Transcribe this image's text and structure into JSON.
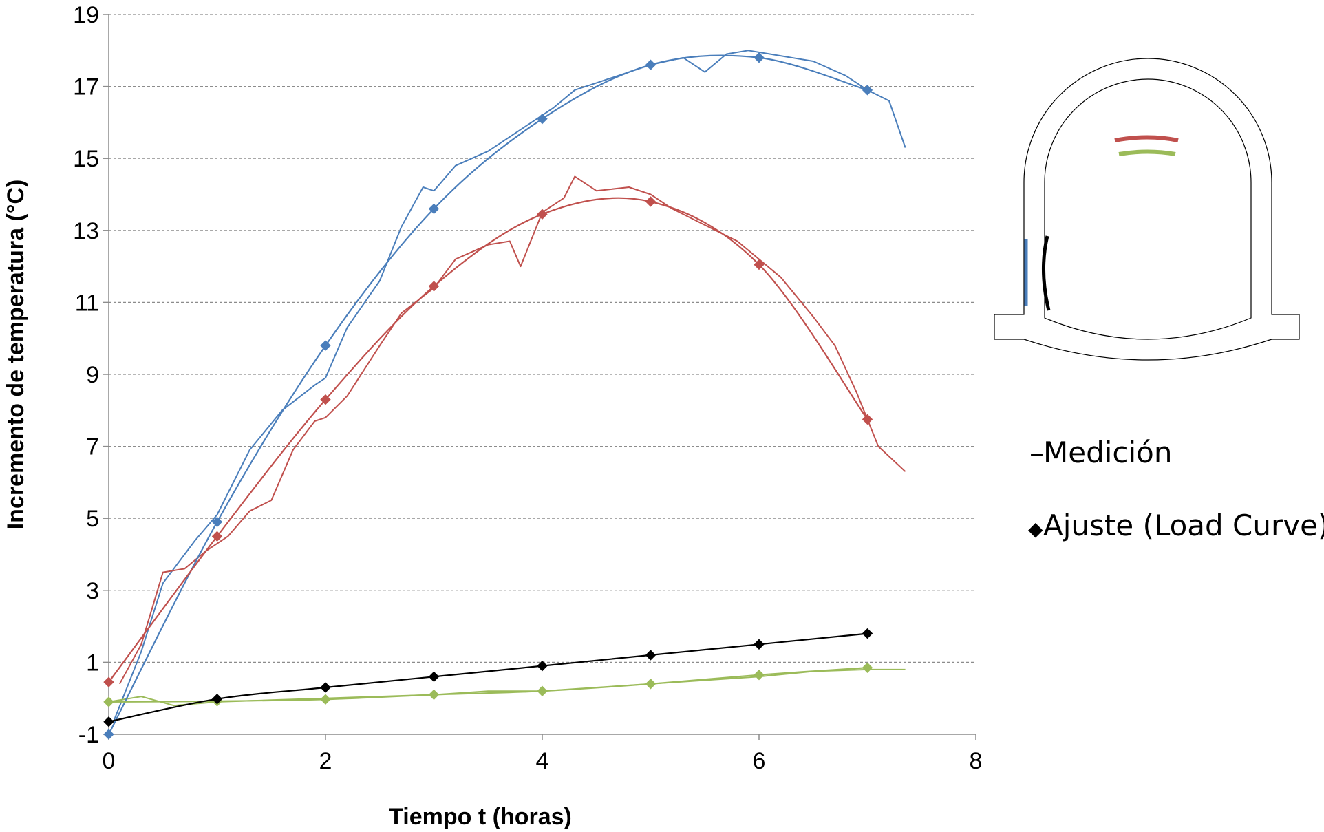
{
  "chart_data": {
    "type": "line",
    "xlabel": "Tiempo t (horas)",
    "ylabel": "Incremento de temperatura (°C)",
    "xlim": [
      0,
      8
    ],
    "ylim": [
      -1,
      19
    ],
    "xticks": [
      "0",
      "2",
      "4",
      "6",
      "8"
    ],
    "yticks": [
      "-1",
      "1",
      "3",
      "5",
      "7",
      "9",
      "11",
      "13",
      "15",
      "17",
      "19"
    ],
    "grid": "horizontal-dashed",
    "legend": [
      {
        "marker": "–",
        "label": "Medición"
      },
      {
        "marker": "◆",
        "label": "Ajuste (Load Curve)"
      }
    ],
    "colors": {
      "blue": "#4a7ebb",
      "red": "#c0504d",
      "green": "#9bbb59",
      "black": "#000000"
    },
    "measurement_series": [
      {
        "color": "blue",
        "x": [
          0.05,
          0.3,
          0.5,
          0.8,
          1.0,
          1.3,
          1.6,
          1.9,
          2.0,
          2.2,
          2.5,
          2.7,
          2.9,
          3.0,
          3.2,
          3.5,
          3.7,
          3.9,
          4.1,
          4.3,
          4.5,
          4.7,
          5.0,
          5.3,
          5.5,
          5.7,
          5.9,
          6.1,
          6.3,
          6.5,
          6.8,
          7.0,
          7.2,
          7.35
        ],
        "y": [
          -0.6,
          1.3,
          3.2,
          4.4,
          5.1,
          6.9,
          8.0,
          8.7,
          8.9,
          10.3,
          11.6,
          13.1,
          14.2,
          14.1,
          14.8,
          15.2,
          15.6,
          16.0,
          16.4,
          16.9,
          17.1,
          17.3,
          17.6,
          17.8,
          17.4,
          17.9,
          18.0,
          17.9,
          17.8,
          17.7,
          17.3,
          16.9,
          16.6,
          15.3
        ]
      },
      {
        "color": "red",
        "x": [
          0.1,
          0.3,
          0.5,
          0.7,
          0.9,
          1.1,
          1.3,
          1.5,
          1.7,
          1.9,
          2.0,
          2.2,
          2.5,
          2.7,
          3.0,
          3.2,
          3.5,
          3.7,
          3.8,
          4.0,
          4.2,
          4.3,
          4.5,
          4.8,
          5.0,
          5.2,
          5.4,
          5.6,
          5.8,
          6.0,
          6.2,
          6.5,
          6.7,
          6.9,
          7.1,
          7.35
        ],
        "y": [
          0.4,
          1.5,
          3.5,
          3.6,
          4.1,
          4.5,
          5.2,
          5.5,
          6.9,
          7.7,
          7.8,
          8.4,
          9.8,
          10.7,
          11.4,
          12.2,
          12.6,
          12.7,
          12.0,
          13.5,
          13.9,
          14.5,
          14.1,
          14.2,
          14.0,
          13.6,
          13.3,
          13.0,
          12.7,
          12.2,
          11.7,
          10.6,
          9.8,
          8.5,
          7.0,
          6.3
        ]
      },
      {
        "color": "green",
        "x": [
          0.0,
          0.3,
          0.6,
          1.0,
          1.5,
          2.0,
          2.5,
          3.0,
          3.5,
          4.0,
          4.5,
          5.0,
          5.5,
          6.0,
          6.5,
          7.0,
          7.35
        ],
        "y": [
          -0.1,
          0.05,
          -0.2,
          -0.1,
          -0.05,
          0.0,
          0.05,
          0.1,
          0.2,
          0.2,
          0.3,
          0.4,
          0.5,
          0.6,
          0.75,
          0.8,
          0.8
        ]
      }
    ],
    "fit_series": [
      {
        "color": "blue",
        "x": [
          0,
          1,
          2,
          3,
          4,
          5,
          6,
          7
        ],
        "y": [
          -1.0,
          4.9,
          9.8,
          13.6,
          16.1,
          17.6,
          17.8,
          16.9
        ]
      },
      {
        "color": "red",
        "x": [
          0,
          1,
          2,
          3,
          4,
          5,
          6,
          7
        ],
        "y": [
          0.45,
          4.5,
          8.3,
          11.45,
          13.45,
          13.8,
          12.05,
          7.75
        ]
      },
      {
        "color": "green",
        "x": [
          0,
          1,
          2,
          3,
          4,
          5,
          6,
          7
        ],
        "y": [
          -0.1,
          -0.08,
          -0.03,
          0.1,
          0.2,
          0.4,
          0.65,
          0.85
        ]
      },
      {
        "color": "black",
        "x": [
          0,
          1,
          2,
          3,
          4,
          5,
          6,
          7
        ],
        "y": [
          -0.65,
          -0.02,
          0.3,
          0.6,
          0.9,
          1.2,
          1.5,
          1.8
        ]
      }
    ]
  }
}
